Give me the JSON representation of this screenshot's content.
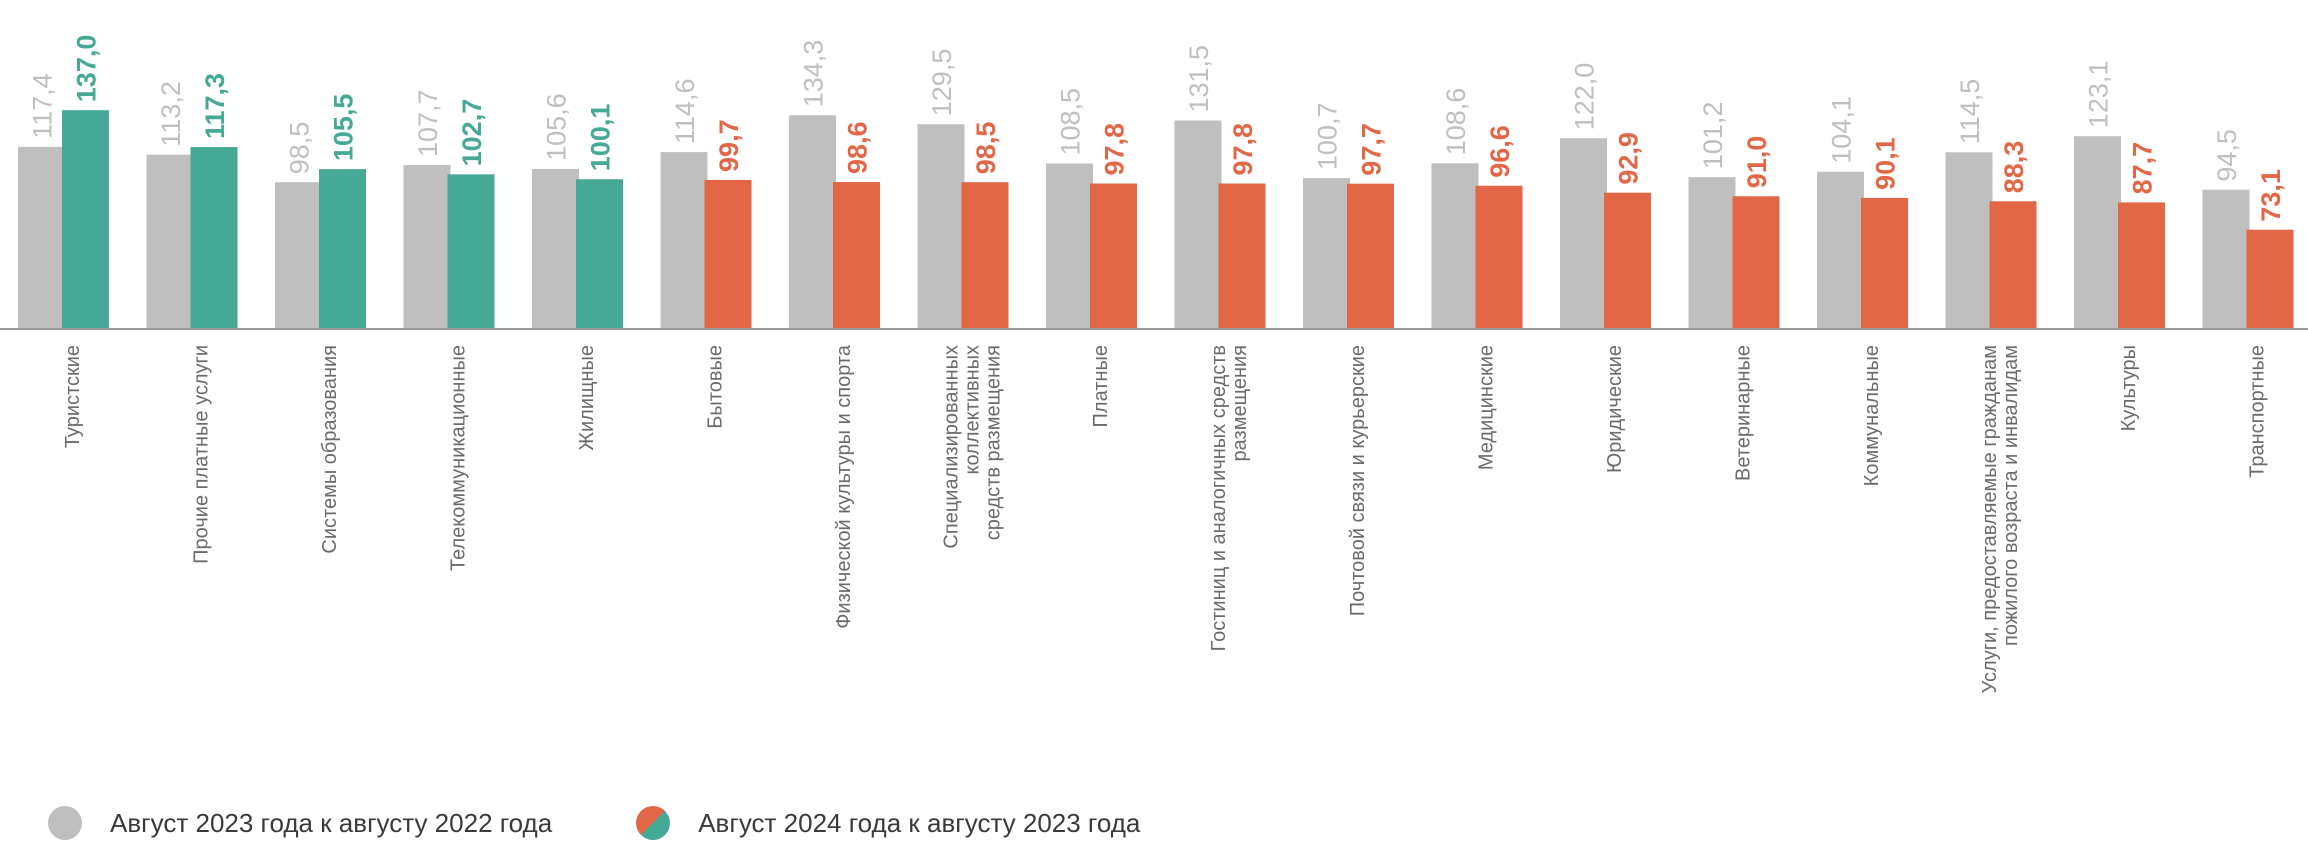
{
  "colors": {
    "prev": "#bfbfbf",
    "growth": "#45a995",
    "decline": "#e26747",
    "axis": "#9a9a9a",
    "category_text": "#6b6b6b"
  },
  "legend": {
    "prev_label": "Август 2023 года к августу 2022 года",
    "curr_label": "Август 2024 года к августу 2023 года"
  },
  "chart_data": {
    "type": "bar",
    "categories": [
      [
        "Туристские"
      ],
      [
        "Прочие платные услуги"
      ],
      [
        "Системы образования"
      ],
      [
        "Телекоммуникационные"
      ],
      [
        "Жилищные"
      ],
      [
        "Бытовые"
      ],
      [
        "Физической культуры и спорта"
      ],
      [
        "Специализированных",
        "коллективных",
        "средств размещения"
      ],
      [
        "Платные"
      ],
      [
        "Гостиниц и аналогичных средств",
        "размещения"
      ],
      [
        "Почтовой связи и курьерские"
      ],
      [
        "Медицинские"
      ],
      [
        "Юридические"
      ],
      [
        "Ветеринарные"
      ],
      [
        "Коммунальные"
      ],
      [
        "Услуги, предоставляемые гражданам",
        "пожилого возраста и инвалидам"
      ],
      [
        "Культуры"
      ],
      [
        "Транспортные"
      ]
    ],
    "series": [
      {
        "name": "Август 2023 года к августу 2022 года",
        "values": [
          117.4,
          113.2,
          98.5,
          107.7,
          105.6,
          114.6,
          134.3,
          129.5,
          108.5,
          131.5,
          100.7,
          108.6,
          122.0,
          101.2,
          104.1,
          114.5,
          123.1,
          94.5
        ],
        "labels": [
          "117,4",
          "113,2",
          "98,5",
          "107,7",
          "105,6",
          "114,6",
          "134,3",
          "129,5",
          "108,5",
          "131,5",
          "100,7",
          "108,6",
          "122,0",
          "101,2",
          "104,1",
          "114,5",
          "123,1",
          "94,5"
        ]
      },
      {
        "name": "Август 2024 года к августу 2023 года",
        "values": [
          137.0,
          117.3,
          105.5,
          102.7,
          100.1,
          99.7,
          98.6,
          98.5,
          97.8,
          97.8,
          97.7,
          96.6,
          92.9,
          91.0,
          90.1,
          88.3,
          87.7,
          73.1
        ],
        "labels": [
          "137,0",
          "117,3",
          "105,5",
          "102,7",
          "100,1",
          "99,7",
          "98,6",
          "98,5",
          "97,8",
          "97,8",
          "97,7",
          "96,6",
          "92,9",
          "91,0",
          "90,1",
          "88,3",
          "87,7",
          "73,1"
        ]
      }
    ],
    "baseline": 20,
    "threshold": 100,
    "grid": false,
    "legend_position": "bottom-left"
  }
}
